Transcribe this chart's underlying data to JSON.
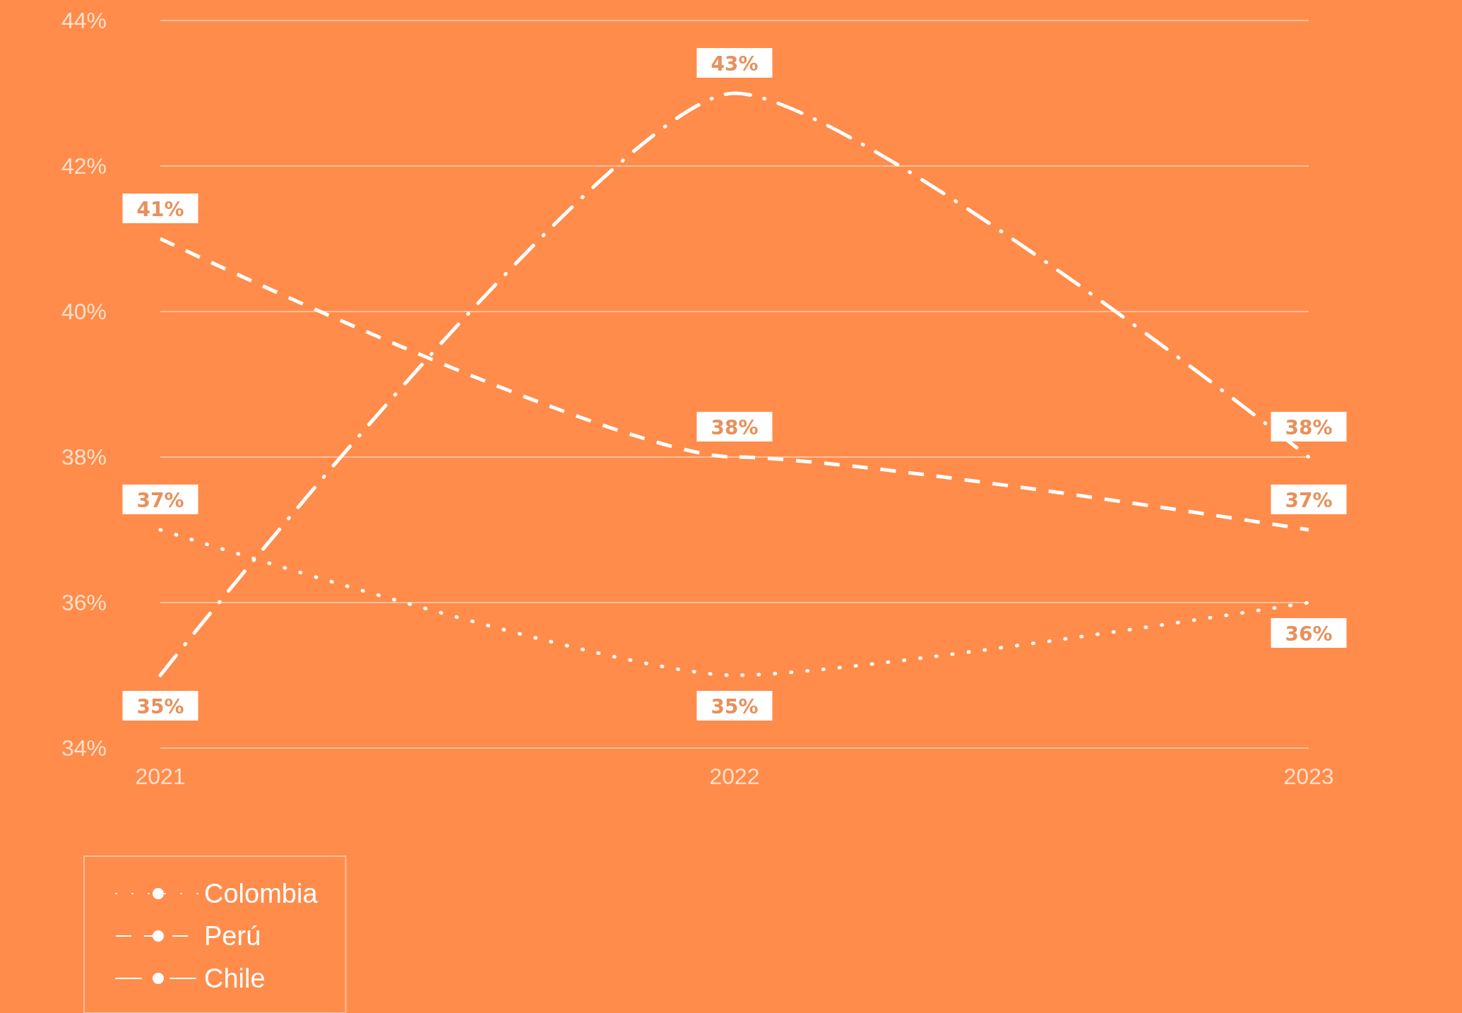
{
  "chart_data": {
    "type": "line",
    "categories": [
      "2021",
      "2022",
      "2023"
    ],
    "series": [
      {
        "name": "Colombia",
        "color": "#ffffff",
        "line_style": "dotted",
        "values": [
          37,
          35,
          36
        ],
        "value_labels": [
          "37%",
          "35%",
          "36%"
        ]
      },
      {
        "name": "Perú",
        "color": "#ffffff",
        "line_style": "dashed",
        "values": [
          41,
          38,
          37
        ],
        "value_labels": [
          "41%",
          "38%",
          "37%"
        ]
      },
      {
        "name": "Chile",
        "color": "#ffffff",
        "line_style": "dashdot",
        "values": [
          35,
          43,
          38
        ],
        "value_labels": [
          "35%",
          "43%",
          "38%"
        ]
      }
    ],
    "ylim": [
      34,
      44
    ],
    "yticks": [
      {
        "value": 34,
        "label": "34%"
      },
      {
        "value": 36,
        "label": "36%"
      },
      {
        "value": 38,
        "label": "38%"
      },
      {
        "value": 40,
        "label": "40%"
      },
      {
        "value": 42,
        "label": "42%"
      },
      {
        "value": 44,
        "label": "44%"
      }
    ],
    "grid": "y",
    "legend": "bottom left",
    "marker": "none"
  }
}
